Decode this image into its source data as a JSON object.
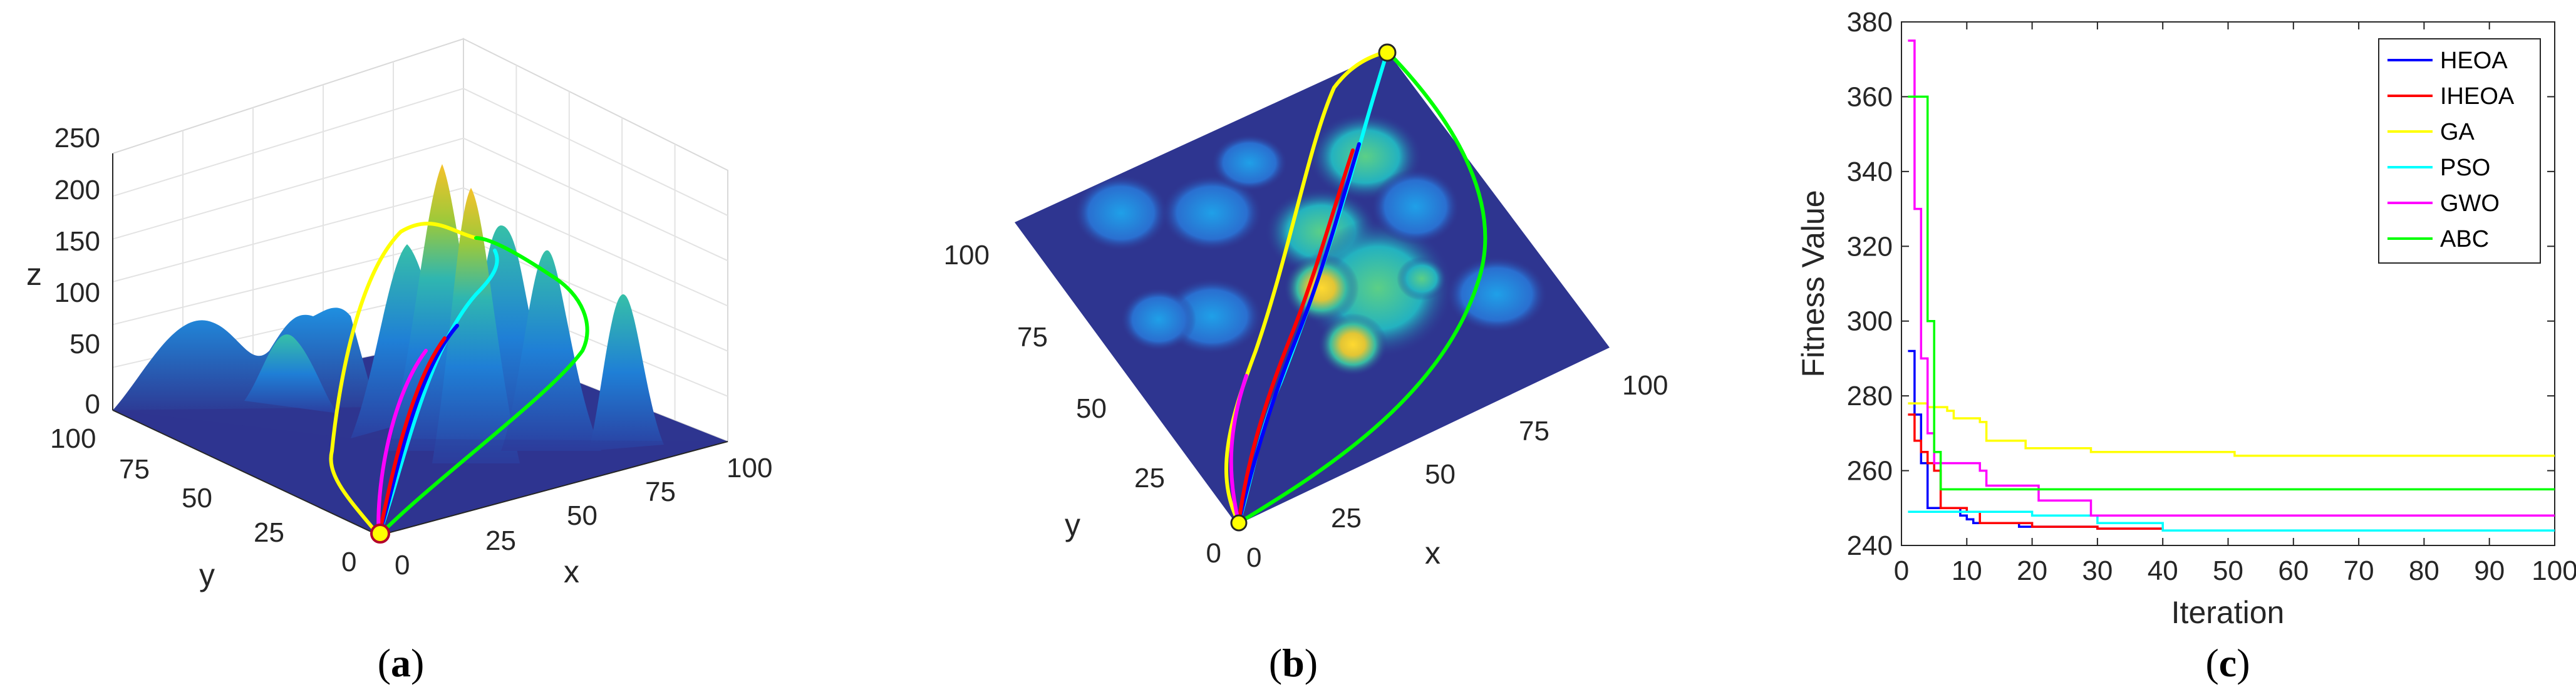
{
  "panels": {
    "a": {
      "caption_open": "(",
      "caption_letter": "a",
      "caption_close": ")"
    },
    "b": {
      "caption_open": "(",
      "caption_letter": "b",
      "caption_close": ")"
    },
    "c": {
      "caption_open": "(",
      "caption_letter": "c",
      "caption_close": ")"
    }
  },
  "chart_data": [
    {
      "type": "surface",
      "panel": "a",
      "xlabel": "x",
      "ylabel": "y",
      "zlabel": "z",
      "x_ticks": [
        "0",
        "25",
        "50",
        "75",
        "100"
      ],
      "y_ticks": [
        "0",
        "25",
        "50",
        "75",
        "100"
      ],
      "z_ticks": [
        "0",
        "50",
        "100",
        "150",
        "200",
        "250"
      ],
      "xlim": [
        0,
        100
      ],
      "ylim": [
        0,
        100
      ],
      "zlim": [
        0,
        250
      ],
      "grid": true,
      "paths": [
        {
          "color": "#0000ff"
        },
        {
          "color": "#ff0000"
        },
        {
          "color": "#ffff00"
        },
        {
          "color": "#00ffff"
        },
        {
          "color": "#ff00ff"
        },
        {
          "color": "#00ff00"
        }
      ]
    },
    {
      "type": "surface-top-view",
      "panel": "b",
      "xlabel": "x",
      "ylabel": "y",
      "x_ticks": [
        "0",
        "25",
        "50",
        "75",
        "100"
      ],
      "y_ticks": [
        "0",
        "25",
        "50",
        "75",
        "100"
      ],
      "xlim": [
        0,
        100
      ],
      "ylim": [
        0,
        100
      ]
    },
    {
      "type": "line",
      "panel": "c",
      "xlabel": "Iteration",
      "ylabel": "Fitness Value",
      "xlim": [
        0,
        100
      ],
      "ylim": [
        240,
        380
      ],
      "x_ticks": [
        "0",
        "10",
        "20",
        "30",
        "40",
        "50",
        "60",
        "70",
        "80",
        "90",
        "100"
      ],
      "y_ticks": [
        "240",
        "260",
        "280",
        "300",
        "320",
        "340",
        "360",
        "380"
      ],
      "legend_position": "top-right",
      "series": [
        {
          "name": "HEOA",
          "color": "#0000ff",
          "x": [
            1,
            2,
            3,
            4,
            8,
            9,
            10,
            11,
            12,
            18,
            30,
            40
          ],
          "y": [
            292,
            275,
            262,
            250,
            250,
            248,
            247,
            246,
            246,
            245,
            244.5,
            244.5
          ]
        },
        {
          "name": "IHEOA",
          "color": "#ff0000",
          "x": [
            1,
            2,
            3,
            4,
            5,
            6,
            10,
            12,
            20,
            30,
            40
          ],
          "y": [
            275,
            268,
            265,
            262,
            260,
            250,
            249,
            246,
            245,
            244.5,
            244
          ]
        },
        {
          "name": "GA",
          "color": "#ffff00",
          "x": [
            1,
            4,
            7,
            8,
            9,
            12,
            13,
            18,
            19,
            28,
            29,
            50,
            51,
            100
          ],
          "y": [
            278,
            277,
            276,
            274,
            274,
            273,
            268,
            268,
            266,
            266,
            265,
            265,
            264,
            264
          ]
        },
        {
          "name": "PSO",
          "color": "#00ffff",
          "x": [
            1,
            10,
            20,
            30,
            40,
            100
          ],
          "y": [
            249,
            249,
            248,
            246,
            244,
            244
          ]
        },
        {
          "name": "GWO",
          "color": "#ff00ff",
          "x": [
            1,
            2,
            3,
            4,
            5,
            10,
            12,
            13,
            20,
            21,
            28,
            29,
            100
          ],
          "y": [
            375,
            330,
            290,
            270,
            262,
            262,
            260,
            256,
            256,
            252,
            252,
            248,
            248
          ]
        },
        {
          "name": "ABC",
          "color": "#00ff00",
          "x": [
            1,
            2,
            3,
            4,
            5,
            6,
            100
          ],
          "y": [
            360,
            360,
            360,
            300,
            265,
            255,
            255
          ]
        }
      ]
    }
  ]
}
